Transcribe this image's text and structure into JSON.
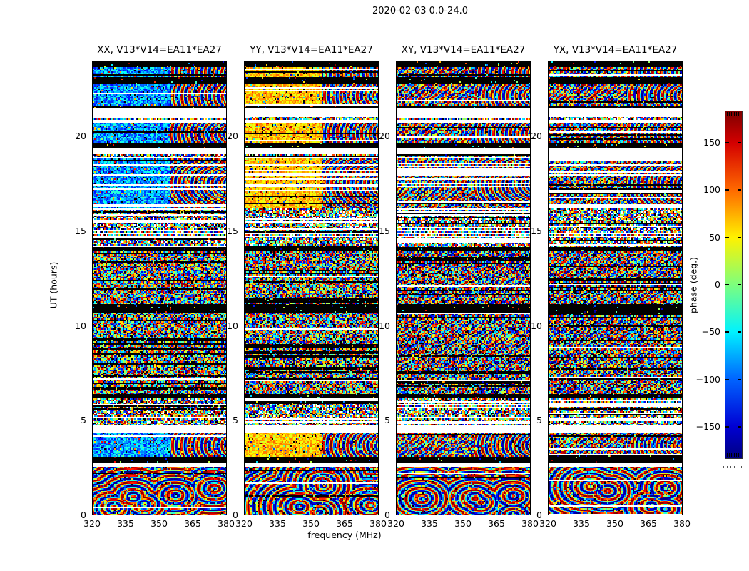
{
  "figure": {
    "title": "2020-02-03 0.0-24.0",
    "background": "#ffffff"
  },
  "axes": {
    "xlabel": "frequency (MHz)",
    "ylabel": "UT (hours)",
    "x_ticks": [
      320,
      335,
      350,
      365,
      380
    ],
    "y_ticks": [
      0,
      5,
      10,
      15,
      20
    ],
    "x_range": [
      320,
      380
    ],
    "y_range": [
      0,
      24
    ]
  },
  "panels": [
    {
      "key": "xx",
      "title": "XX, V13*V14=EA11*EA27",
      "tone": "cold"
    },
    {
      "key": "yy",
      "title": "YY, V13*V14=EA11*EA27",
      "tone": "warm"
    },
    {
      "key": "xy",
      "title": "XY, V13*V14=EA11*EA27",
      "tone": "mixed"
    },
    {
      "key": "yx",
      "title": "YX, V13*V14=EA11*EA27",
      "tone": "mixed"
    }
  ],
  "colorbar": {
    "label": "phase (deg.)",
    "colormap": "jet",
    "range": [
      -180,
      180
    ],
    "ticks": [
      {
        "value": 150,
        "label": "150"
      },
      {
        "value": 100,
        "label": "100"
      },
      {
        "value": 50,
        "label": "50"
      },
      {
        "value": 0,
        "label": "0"
      },
      {
        "value": -50,
        "label": "−50"
      },
      {
        "value": -100,
        "label": "−100"
      },
      {
        "value": -150,
        "label": "−150"
      }
    ],
    "stops": [
      {
        "v": 184,
        "c": "#7f0000"
      },
      {
        "v": 150,
        "c": "#d40000"
      },
      {
        "v": 100,
        "c": "#ff6a00"
      },
      {
        "v": 50,
        "c": "#fff200"
      },
      {
        "v": 0,
        "c": "#7dff7d"
      },
      {
        "v": -50,
        "c": "#00f2ff"
      },
      {
        "v": -100,
        "c": "#0064ff"
      },
      {
        "v": -150,
        "c": "#0000d4"
      },
      {
        "v": -184,
        "c": "#000080"
      }
    ]
  },
  "chart_data": {
    "type": "heatmap",
    "title": "2020-02-03 0.0-24.0",
    "xlabel": "frequency (MHz)",
    "ylabel": "UT (hours)",
    "x_ticks": [
      320,
      335,
      350,
      365,
      380
    ],
    "y_ticks": [
      0,
      5,
      10,
      15,
      20
    ],
    "x_range_mhz": [
      320,
      380
    ],
    "y_range_hours": [
      0,
      24
    ],
    "value": "phase (deg.)",
    "value_range": [
      -180,
      180
    ],
    "colormap": "jet",
    "baseline": "V13*V14=EA11*EA27",
    "panels": [
      "XX",
      "YY",
      "XY",
      "YX"
    ],
    "panel_character": {
      "XX": "calibrator scan bands dominated by blue/cyan (negative phases), fringe arcs on high-frequency side",
      "YY": "calibrator scan bands dominated by yellow/orange (positive phases), fringe arcs on high-frequency side",
      "XY": "dense multicolor phase noise with wave-like fringes",
      "YX": "dense multicolor phase noise with wave-like fringes"
    },
    "band_types": {
      "black": "flagged / no data (black rows)",
      "white": "observation gap (blank rows)",
      "scan": "coherent calibrator scan",
      "scanlines": "scan region interleaved with blank rows",
      "noise": "dense incoherent phase noise with thin black stripes",
      "sparse": "sparse noisy rows mixed with blank rows",
      "moire": "smooth phase-wrapping fringe whorls"
    },
    "time_bands": [
      {
        "from": 23.68,
        "to": 24.0,
        "type": "black"
      },
      {
        "from": 23.19,
        "to": 23.68,
        "type": "scan"
      },
      {
        "from": 22.77,
        "to": 23.19,
        "type": "black"
      },
      {
        "from": 21.64,
        "to": 22.77,
        "type": "scan"
      },
      {
        "from": 21.49,
        "to": 21.64,
        "type": "black"
      },
      {
        "from": 21.02,
        "to": 21.49,
        "type": "white"
      },
      {
        "from": 20.94,
        "to": 21.02,
        "type": "sparse"
      },
      {
        "from": 20.72,
        "to": 20.94,
        "type": "white"
      },
      {
        "from": 19.68,
        "to": 20.72,
        "type": "scan"
      },
      {
        "from": 19.42,
        "to": 19.68,
        "type": "black"
      },
      {
        "from": 19.06,
        "to": 19.42,
        "type": "white"
      },
      {
        "from": 18.98,
        "to": 19.06,
        "type": "sparse"
      },
      {
        "from": 18.85,
        "to": 18.98,
        "type": "white"
      },
      {
        "from": 16.2,
        "to": 18.85,
        "type": "scanlines"
      },
      {
        "from": 14.21,
        "to": 16.2,
        "type": "sparse"
      },
      {
        "from": 13.95,
        "to": 14.21,
        "type": "black"
      },
      {
        "from": 11.2,
        "to": 13.95,
        "type": "noise"
      },
      {
        "from": 10.75,
        "to": 11.2,
        "type": "black"
      },
      {
        "from": 6.41,
        "to": 10.75,
        "type": "noise"
      },
      {
        "from": 6.18,
        "to": 6.41,
        "type": "black"
      },
      {
        "from": 4.79,
        "to": 6.18,
        "type": "sparse"
      },
      {
        "from": 4.37,
        "to": 4.79,
        "type": "white"
      },
      {
        "from": 3.09,
        "to": 4.37,
        "type": "scan"
      },
      {
        "from": 2.83,
        "to": 3.09,
        "type": "black"
      },
      {
        "from": 2.56,
        "to": 2.83,
        "type": "white"
      },
      {
        "from": 0.0,
        "to": 2.56,
        "type": "moire"
      }
    ]
  }
}
